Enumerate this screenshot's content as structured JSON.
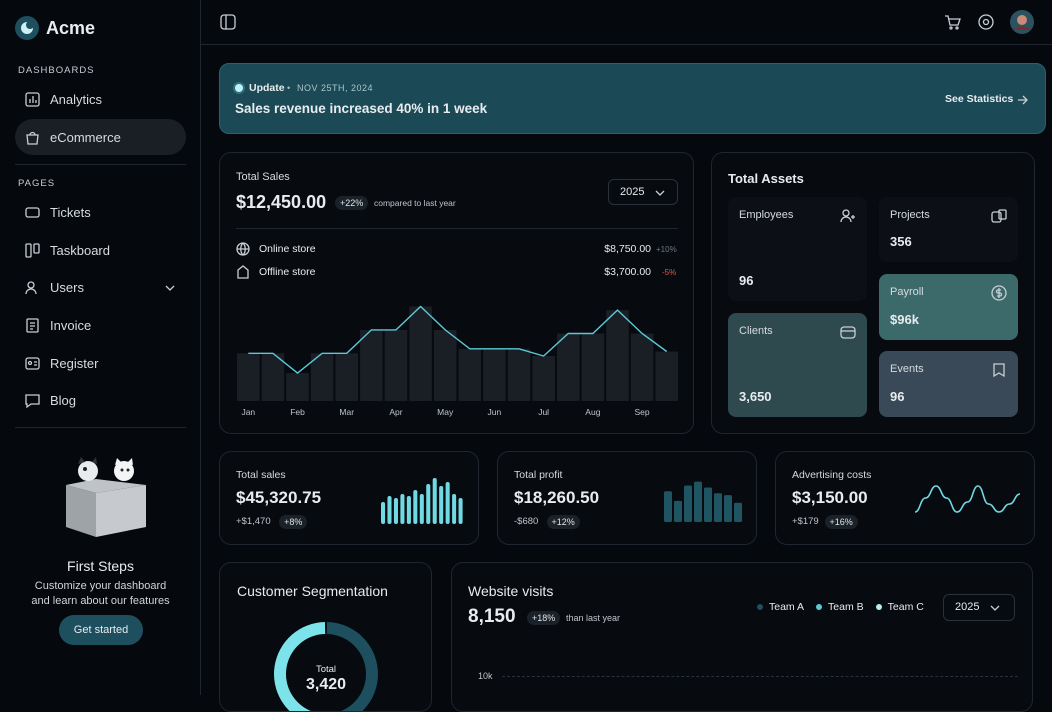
{
  "sidebar": {
    "brand": "Acme",
    "sections": [
      {
        "title": "DASHBOARDS",
        "items": [
          "Analytics",
          "eCommerce"
        ]
      },
      {
        "title": "PAGES",
        "items": [
          "Tickets",
          "Taskboard",
          "Users",
          "Invoice",
          "Register",
          "Blog"
        ]
      }
    ],
    "promo": {
      "title": "First Steps",
      "text": "Customize your dashboard and learn about our features",
      "button": "Get started"
    }
  },
  "banner": {
    "tag": "Update",
    "date": "NOV 25TH, 2024",
    "message": "Sales revenue increased 40% in 1 week",
    "link": "See Statistics"
  },
  "total_sales": {
    "label": "Total Sales",
    "value": "$12,450.00",
    "badge": "+22%",
    "note": "compared to last year",
    "year": "2025",
    "rows": [
      {
        "name": "Online store",
        "value": "$8,750.00",
        "change": "+10%"
      },
      {
        "name": "Offline store",
        "value": "$3,700.00",
        "change": "-5%"
      }
    ],
    "chart": {
      "type": "bar",
      "categories": [
        "Jan",
        null,
        "Feb",
        null,
        "Mar",
        null,
        "Apr",
        null,
        "May",
        null,
        "Jun",
        null,
        "Jul",
        null,
        "Aug",
        null,
        "Sep",
        null
      ],
      "values": [
        53,
        53,
        31,
        53,
        53,
        79,
        79,
        105,
        79,
        58,
        58,
        58,
        50,
        75,
        75,
        101,
        75,
        55
      ],
      "ylim": [
        0,
        120
      ],
      "color": "#1a1e25",
      "line_color": "#5cc8d6"
    }
  },
  "total_assets": {
    "title": "Total Assets",
    "tiles": [
      {
        "label": "Employees",
        "value": "96"
      },
      {
        "label": "Projects",
        "value": "356"
      },
      {
        "label": "Payroll",
        "value": "$96k"
      },
      {
        "label": "Clients",
        "value": "3,650"
      },
      {
        "label": "Events",
        "value": "96"
      }
    ]
  },
  "kpis": [
    {
      "label": "Total sales",
      "value": "$45,320.75",
      "delta": "+$1,470",
      "badge": "+8%",
      "chart": {
        "type": "bar",
        "values": [
          22,
          28,
          26,
          30,
          28,
          34,
          30,
          40,
          46,
          38,
          42,
          30,
          26
        ],
        "ylim": [
          0,
          50
        ],
        "color": "#6fd9e4"
      }
    },
    {
      "label": "Total profit",
      "value": "$18,260.50",
      "delta": "-$680",
      "badge": "+12%",
      "chart": {
        "type": "bar",
        "values": [
          32,
          22,
          38,
          42,
          36,
          30,
          28,
          20
        ],
        "ylim": [
          0,
          50
        ],
        "color": "#1f5563"
      }
    },
    {
      "label": "Advertising costs",
      "value": "$3,150.00",
      "delta": "+$179",
      "badge": "+16%",
      "chart": {
        "type": "line",
        "values": [
          4,
          18,
          30,
          18,
          4,
          14,
          30,
          12,
          4,
          12,
          22
        ],
        "ylim": [
          0,
          34
        ],
        "color": "#6fd9e4"
      }
    }
  ],
  "segmentation": {
    "title": "Customer Segmentation",
    "center_label": "Total",
    "center_value": "3,420",
    "chart": {
      "type": "pie",
      "values": [
        55,
        45
      ],
      "colors": [
        "#1d4f5e",
        "#7de3ea"
      ]
    }
  },
  "visits": {
    "title": "Website visits",
    "value": "8,150",
    "badge": "+18%",
    "note": "than last year",
    "legend": [
      {
        "name": "Team A",
        "color": "#1d4f5e"
      },
      {
        "name": "Team B",
        "color": "#5cc8d6"
      },
      {
        "name": "Team C",
        "color": "#b8eef2"
      }
    ],
    "year": "2025",
    "axis_label": "10k"
  }
}
